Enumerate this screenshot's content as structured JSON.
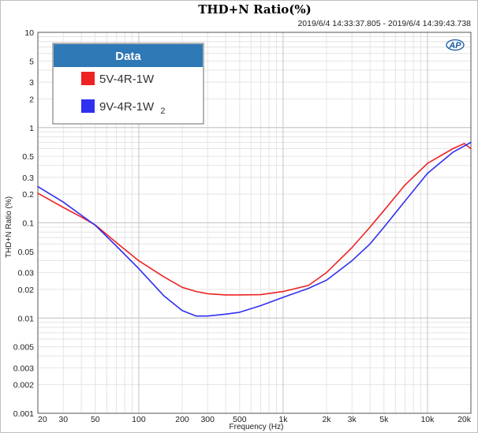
{
  "chart_data": {
    "type": "line",
    "title": "THD+N Ratio(%)",
    "subtitle": "2019/6/4 14:33:37.805 - 2019/6/4 14:39:43.738",
    "xlabel": "Frequency (Hz)",
    "ylabel": "THD+N Ratio (%)",
    "xscale": "log",
    "yscale": "log",
    "xlim": [
      20,
      20000
    ],
    "ylim": [
      0.001,
      10
    ],
    "x_ticks": [
      20,
      30,
      50,
      100,
      200,
      300,
      500,
      1000,
      2000,
      3000,
      5000,
      10000,
      20000
    ],
    "x_tick_labels": [
      "20",
      "30",
      "50",
      "100",
      "200",
      "300",
      "500",
      "1k",
      "2k",
      "3k",
      "5k",
      "10k",
      "20k"
    ],
    "y_ticks": [
      10,
      5,
      3,
      2,
      1,
      0.5,
      0.3,
      0.2,
      0.1,
      0.05,
      0.03,
      0.02,
      0.01,
      0.005,
      0.003,
      0.002,
      0.001
    ],
    "y_tick_labels": [
      "10",
      "5",
      "3",
      "2",
      "1",
      "0.5",
      "0.3",
      "0.2",
      "0.1",
      "0.05",
      "0.03",
      "0.02",
      "0.01",
      "0.005",
      "0.003",
      "0.002",
      "0.001"
    ],
    "grid": true,
    "legend": {
      "title": "Data",
      "placement": "top-left"
    },
    "series": [
      {
        "name": "5V-4R-1W",
        "color": "#ee2222",
        "x": [
          20,
          30,
          40,
          50,
          70,
          100,
          150,
          200,
          250,
          300,
          400,
          500,
          700,
          1000,
          1500,
          2000,
          3000,
          4000,
          5000,
          7000,
          10000,
          15000,
          18000,
          20000
        ],
        "y": [
          0.205,
          0.145,
          0.115,
          0.095,
          0.062,
          0.04,
          0.027,
          0.021,
          0.019,
          0.018,
          0.0175,
          0.0175,
          0.0176,
          0.019,
          0.022,
          0.03,
          0.055,
          0.09,
          0.135,
          0.25,
          0.42,
          0.6,
          0.68,
          0.6
        ]
      },
      {
        "name": "9V-4R-1W",
        "name_suffix": "2",
        "color": "#2f2ff0",
        "x": [
          20,
          30,
          40,
          50,
          70,
          100,
          150,
          200,
          250,
          300,
          400,
          500,
          700,
          1000,
          1500,
          2000,
          3000,
          4000,
          5000,
          7000,
          10000,
          15000,
          20000
        ],
        "y": [
          0.24,
          0.165,
          0.12,
          0.094,
          0.057,
          0.033,
          0.017,
          0.012,
          0.0105,
          0.0105,
          0.011,
          0.0115,
          0.0135,
          0.0165,
          0.0205,
          0.025,
          0.04,
          0.06,
          0.09,
          0.17,
          0.33,
          0.55,
          0.7
        ]
      }
    ]
  }
}
